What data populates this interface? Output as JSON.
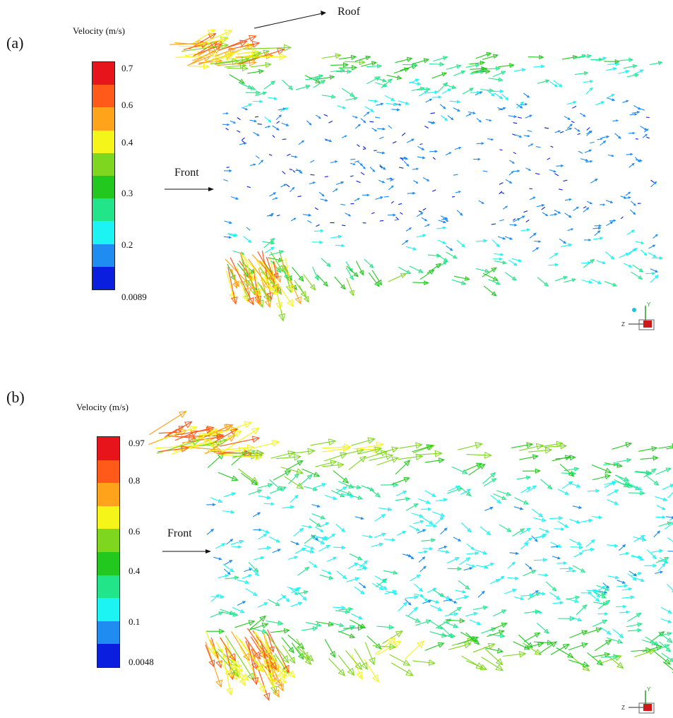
{
  "panels": [
    {
      "id": "a",
      "label": "(a)",
      "legend_title": "Velocity (m/s)",
      "tick_labels": [
        "0.7",
        "0.6",
        "0.4",
        "0.3",
        "0.2",
        "0.0089"
      ],
      "annotations": {
        "front": "Front",
        "roof": "Roof"
      }
    },
    {
      "id": "b",
      "label": "(b)",
      "legend_title": "Velocity (m/s)",
      "tick_labels": [
        "0.97",
        "0.8",
        "0.6",
        "0.4",
        "0.1",
        "0.0048"
      ],
      "annotations": {
        "front": "Front"
      }
    }
  ],
  "colormap": [
    "#e8141c",
    "#ff5a1a",
    "#ffa31a",
    "#f5f51a",
    "#7ed71e",
    "#22c81e",
    "#22e58a",
    "#1cf3f3",
    "#1e8cf0",
    "#0a1ee0"
  ],
  "axis_triad": {
    "z": "Z",
    "y": "Y"
  }
}
